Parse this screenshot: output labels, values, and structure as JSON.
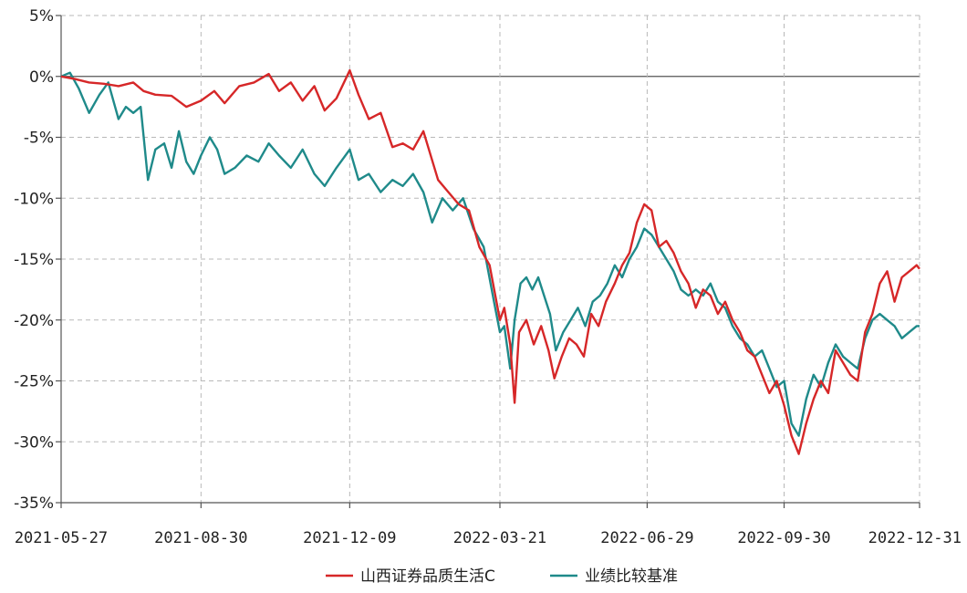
{
  "chart_data": {
    "type": "line",
    "title": "",
    "xlabel": "",
    "ylabel": "",
    "ylim": [
      -35,
      5
    ],
    "y_ticks": [
      5,
      0,
      -5,
      -10,
      -15,
      -20,
      -25,
      -30,
      -35
    ],
    "y_tick_labels": [
      "5%",
      "0%",
      "-5%",
      "-10%",
      "-15%",
      "-20%",
      "-25%",
      "-30%",
      "-35%"
    ],
    "x_range": [
      "2021-05-27",
      "2022-12-31"
    ],
    "x_ticks": [
      "2021-05-27",
      "2021-08-30",
      "2021-12-09",
      "2022-03-21",
      "2022-06-29",
      "2022-09-30",
      "2022-12-31"
    ],
    "grid": true,
    "legend_position": "bottom-center",
    "series": [
      {
        "name": "山西证券品质生活C",
        "color": "#d62728",
        "points": [
          [
            "2021-05-27",
            0.0
          ],
          [
            "2021-06-05",
            -0.2
          ],
          [
            "2021-06-15",
            -0.5
          ],
          [
            "2021-06-25",
            -0.6
          ],
          [
            "2021-07-05",
            -0.8
          ],
          [
            "2021-07-15",
            -0.5
          ],
          [
            "2021-07-22",
            -1.2
          ],
          [
            "2021-07-30",
            -1.5
          ],
          [
            "2021-08-10",
            -1.6
          ],
          [
            "2021-08-20",
            -2.5
          ],
          [
            "2021-08-30",
            -2.0
          ],
          [
            "2021-09-08",
            -1.2
          ],
          [
            "2021-09-15",
            -2.2
          ],
          [
            "2021-09-25",
            -0.8
          ],
          [
            "2021-10-05",
            -0.5
          ],
          [
            "2021-10-15",
            0.2
          ],
          [
            "2021-10-22",
            -1.2
          ],
          [
            "2021-10-30",
            -0.5
          ],
          [
            "2021-11-07",
            -2.0
          ],
          [
            "2021-11-15",
            -0.8
          ],
          [
            "2021-11-22",
            -2.8
          ],
          [
            "2021-11-30",
            -1.8
          ],
          [
            "2021-12-09",
            0.5
          ],
          [
            "2021-12-15",
            -1.5
          ],
          [
            "2021-12-22",
            -3.5
          ],
          [
            "2021-12-30",
            -3.0
          ],
          [
            "2022-01-07",
            -5.8
          ],
          [
            "2022-01-14",
            -5.5
          ],
          [
            "2022-01-21",
            -6.0
          ],
          [
            "2022-01-28",
            -4.5
          ],
          [
            "2022-02-07",
            -8.5
          ],
          [
            "2022-02-14",
            -9.5
          ],
          [
            "2022-02-21",
            -10.5
          ],
          [
            "2022-02-28",
            -11.0
          ],
          [
            "2022-03-07",
            -14.0
          ],
          [
            "2022-03-14",
            -15.5
          ],
          [
            "2022-03-21",
            -20.0
          ],
          [
            "2022-03-24",
            -19.0
          ],
          [
            "2022-03-28",
            -22.0
          ],
          [
            "2022-03-31",
            -26.8
          ],
          [
            "2022-04-03",
            -21.0
          ],
          [
            "2022-04-08",
            -20.0
          ],
          [
            "2022-04-13",
            -22.0
          ],
          [
            "2022-04-18",
            -20.5
          ],
          [
            "2022-04-23",
            -22.5
          ],
          [
            "2022-04-27",
            -24.8
          ],
          [
            "2022-05-02",
            -23.0
          ],
          [
            "2022-05-07",
            -21.5
          ],
          [
            "2022-05-12",
            -22.0
          ],
          [
            "2022-05-17",
            -23.0
          ],
          [
            "2022-05-22",
            -19.5
          ],
          [
            "2022-05-27",
            -20.5
          ],
          [
            "2022-06-01",
            -18.5
          ],
          [
            "2022-06-07",
            -17.0
          ],
          [
            "2022-06-12",
            -15.5
          ],
          [
            "2022-06-17",
            -14.5
          ],
          [
            "2022-06-22",
            -12.0
          ],
          [
            "2022-06-27",
            -10.5
          ],
          [
            "2022-07-02",
            -11.0
          ],
          [
            "2022-07-07",
            -14.0
          ],
          [
            "2022-07-12",
            -13.5
          ],
          [
            "2022-07-17",
            -14.5
          ],
          [
            "2022-07-22",
            -16.0
          ],
          [
            "2022-07-27",
            -17.0
          ],
          [
            "2022-08-01",
            -19.0
          ],
          [
            "2022-08-06",
            -17.5
          ],
          [
            "2022-08-11",
            -18.0
          ],
          [
            "2022-08-16",
            -19.5
          ],
          [
            "2022-08-21",
            -18.5
          ],
          [
            "2022-08-26",
            -20.0
          ],
          [
            "2022-08-31",
            -21.0
          ],
          [
            "2022-09-05",
            -22.5
          ],
          [
            "2022-09-10",
            -23.0
          ],
          [
            "2022-09-15",
            -24.5
          ],
          [
            "2022-09-20",
            -26.0
          ],
          [
            "2022-09-25",
            -25.0
          ],
          [
            "2022-09-30",
            -27.0
          ],
          [
            "2022-10-05",
            -29.5
          ],
          [
            "2022-10-10",
            -31.0
          ],
          [
            "2022-10-15",
            -28.5
          ],
          [
            "2022-10-20",
            -26.5
          ],
          [
            "2022-10-25",
            -25.0
          ],
          [
            "2022-10-30",
            -26.0
          ],
          [
            "2022-11-04",
            -22.5
          ],
          [
            "2022-11-09",
            -23.5
          ],
          [
            "2022-11-14",
            -24.5
          ],
          [
            "2022-11-19",
            -25.0
          ],
          [
            "2022-11-24",
            -21.0
          ],
          [
            "2022-11-29",
            -19.5
          ],
          [
            "2022-12-04",
            -17.0
          ],
          [
            "2022-12-09",
            -16.0
          ],
          [
            "2022-12-14",
            -18.5
          ],
          [
            "2022-12-19",
            -16.5
          ],
          [
            "2022-12-24",
            -16.0
          ],
          [
            "2022-12-29",
            -15.5
          ],
          [
            "2022-12-31",
            -15.8
          ]
        ]
      },
      {
        "name": "业绩比较基准",
        "color": "#1f8a8a",
        "points": [
          [
            "2021-05-27",
            0.0
          ],
          [
            "2021-06-02",
            0.3
          ],
          [
            "2021-06-08",
            -1.0
          ],
          [
            "2021-06-15",
            -3.0
          ],
          [
            "2021-06-22",
            -1.5
          ],
          [
            "2021-06-28",
            -0.5
          ],
          [
            "2021-07-05",
            -3.5
          ],
          [
            "2021-07-10",
            -2.5
          ],
          [
            "2021-07-15",
            -3.0
          ],
          [
            "2021-07-20",
            -2.5
          ],
          [
            "2021-07-25",
            -8.5
          ],
          [
            "2021-07-30",
            -6.0
          ],
          [
            "2021-08-05",
            -5.5
          ],
          [
            "2021-08-10",
            -7.5
          ],
          [
            "2021-08-15",
            -4.5
          ],
          [
            "2021-08-20",
            -7.0
          ],
          [
            "2021-08-25",
            -8.0
          ],
          [
            "2021-08-30",
            -6.5
          ],
          [
            "2021-09-05",
            -5.0
          ],
          [
            "2021-09-10",
            -6.0
          ],
          [
            "2021-09-15",
            -8.0
          ],
          [
            "2021-09-22",
            -7.5
          ],
          [
            "2021-09-30",
            -6.5
          ],
          [
            "2021-10-08",
            -7.0
          ],
          [
            "2021-10-15",
            -5.5
          ],
          [
            "2021-10-22",
            -6.5
          ],
          [
            "2021-10-30",
            -7.5
          ],
          [
            "2021-11-07",
            -6.0
          ],
          [
            "2021-11-15",
            -8.0
          ],
          [
            "2021-11-22",
            -9.0
          ],
          [
            "2021-11-30",
            -7.5
          ],
          [
            "2021-12-09",
            -6.0
          ],
          [
            "2021-12-15",
            -8.5
          ],
          [
            "2021-12-22",
            -8.0
          ],
          [
            "2021-12-30",
            -9.5
          ],
          [
            "2022-01-07",
            -8.5
          ],
          [
            "2022-01-14",
            -9.0
          ],
          [
            "2022-01-21",
            -8.0
          ],
          [
            "2022-01-28",
            -9.5
          ],
          [
            "2022-02-03",
            -12.0
          ],
          [
            "2022-02-10",
            -10.0
          ],
          [
            "2022-02-17",
            -11.0
          ],
          [
            "2022-02-24",
            -10.0
          ],
          [
            "2022-03-03",
            -12.5
          ],
          [
            "2022-03-10",
            -14.0
          ],
          [
            "2022-03-17",
            -18.5
          ],
          [
            "2022-03-21",
            -21.0
          ],
          [
            "2022-03-24",
            -20.5
          ],
          [
            "2022-03-28",
            -24.0
          ],
          [
            "2022-03-31",
            -20.0
          ],
          [
            "2022-04-04",
            -17.0
          ],
          [
            "2022-04-08",
            -16.5
          ],
          [
            "2022-04-12",
            -17.5
          ],
          [
            "2022-04-16",
            -16.5
          ],
          [
            "2022-04-20",
            -18.0
          ],
          [
            "2022-04-24",
            -19.5
          ],
          [
            "2022-04-28",
            -22.5
          ],
          [
            "2022-05-03",
            -21.0
          ],
          [
            "2022-05-08",
            -20.0
          ],
          [
            "2022-05-13",
            -19.0
          ],
          [
            "2022-05-18",
            -20.5
          ],
          [
            "2022-05-23",
            -18.5
          ],
          [
            "2022-05-28",
            -18.0
          ],
          [
            "2022-06-02",
            -17.0
          ],
          [
            "2022-06-07",
            -15.5
          ],
          [
            "2022-06-12",
            -16.5
          ],
          [
            "2022-06-17",
            -15.0
          ],
          [
            "2022-06-22",
            -14.0
          ],
          [
            "2022-06-27",
            -12.5
          ],
          [
            "2022-07-02",
            -13.0
          ],
          [
            "2022-07-07",
            -14.0
          ],
          [
            "2022-07-12",
            -15.0
          ],
          [
            "2022-07-17",
            -16.0
          ],
          [
            "2022-07-22",
            -17.5
          ],
          [
            "2022-07-27",
            -18.0
          ],
          [
            "2022-08-01",
            -17.5
          ],
          [
            "2022-08-06",
            -18.0
          ],
          [
            "2022-08-11",
            -17.0
          ],
          [
            "2022-08-16",
            -18.5
          ],
          [
            "2022-08-21",
            -19.0
          ],
          [
            "2022-08-26",
            -20.5
          ],
          [
            "2022-08-31",
            -21.5
          ],
          [
            "2022-09-05",
            -22.0
          ],
          [
            "2022-09-10",
            -23.0
          ],
          [
            "2022-09-15",
            -22.5
          ],
          [
            "2022-09-20",
            -24.0
          ],
          [
            "2022-09-25",
            -25.5
          ],
          [
            "2022-09-30",
            -25.0
          ],
          [
            "2022-10-05",
            -28.5
          ],
          [
            "2022-10-10",
            -29.5
          ],
          [
            "2022-10-15",
            -26.5
          ],
          [
            "2022-10-20",
            -24.5
          ],
          [
            "2022-10-25",
            -25.5
          ],
          [
            "2022-10-30",
            -23.5
          ],
          [
            "2022-11-04",
            -22.0
          ],
          [
            "2022-11-09",
            -23.0
          ],
          [
            "2022-11-14",
            -23.5
          ],
          [
            "2022-11-19",
            -24.0
          ],
          [
            "2022-11-24",
            -21.5
          ],
          [
            "2022-11-29",
            -20.0
          ],
          [
            "2022-12-04",
            -19.5
          ],
          [
            "2022-12-09",
            -20.0
          ],
          [
            "2022-12-14",
            -20.5
          ],
          [
            "2022-12-19",
            -21.5
          ],
          [
            "2022-12-24",
            -21.0
          ],
          [
            "2022-12-29",
            -20.5
          ],
          [
            "2022-12-31",
            -20.5
          ]
        ]
      }
    ]
  }
}
